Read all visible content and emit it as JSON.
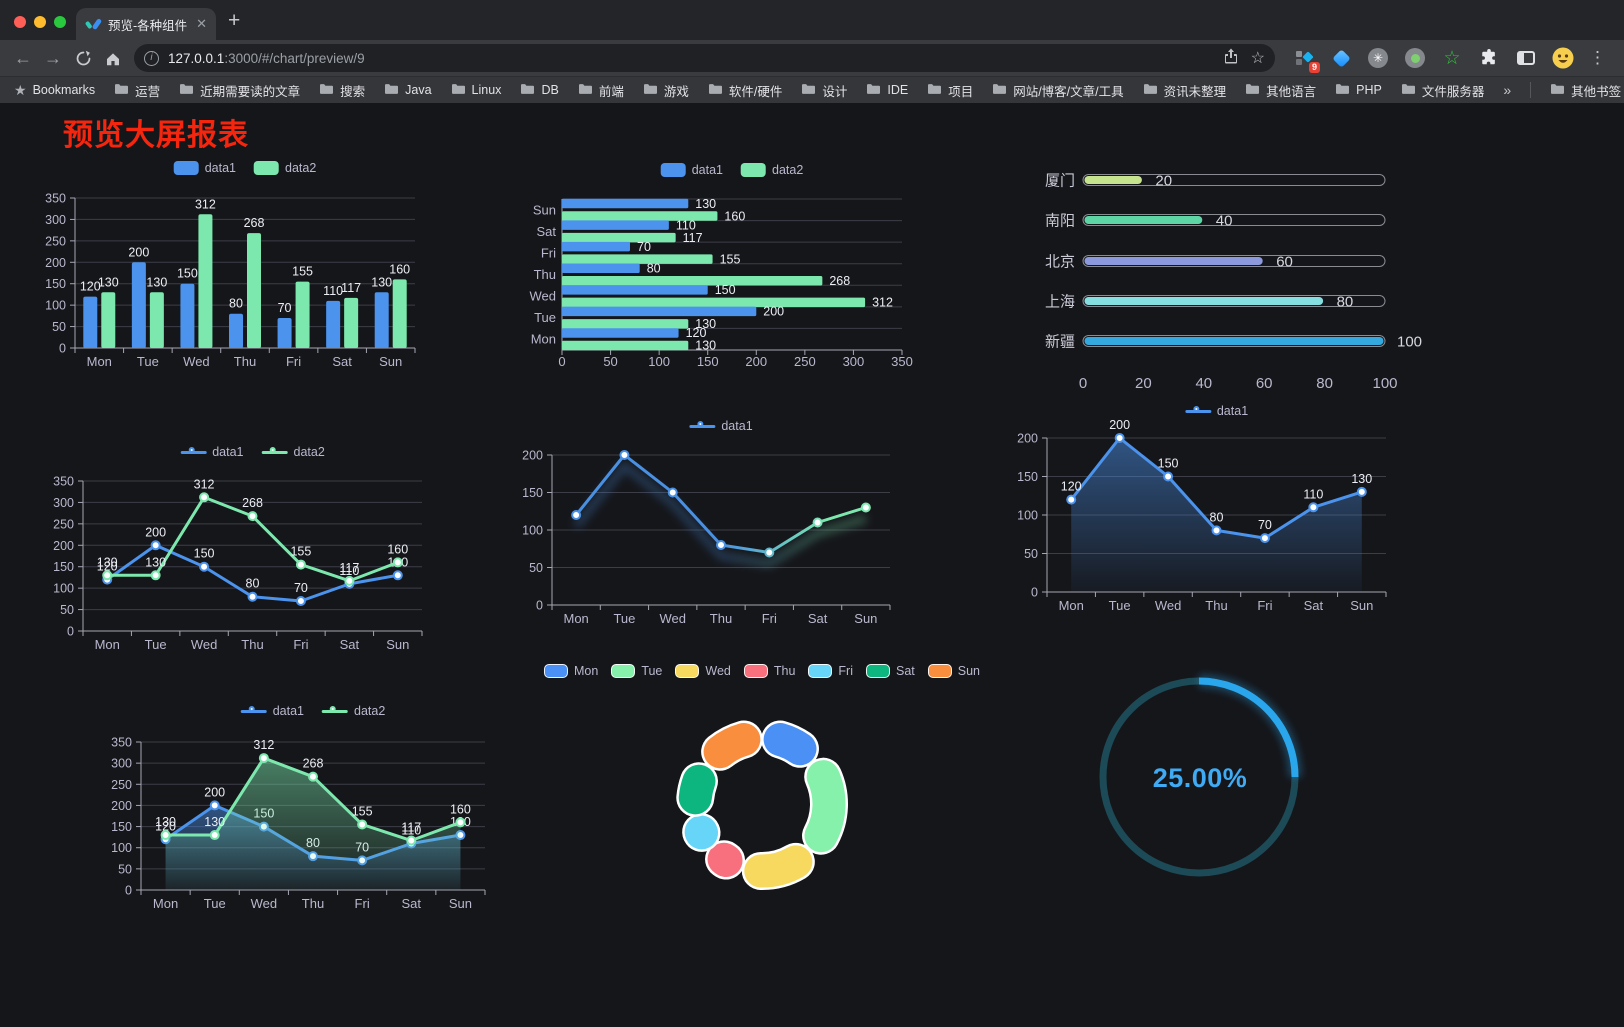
{
  "browser": {
    "tab_title": "预览-各种组件",
    "url": {
      "host": "127.0.0.1",
      "rest": ":3000/#/chart/preview/9"
    },
    "extension_badge": "9"
  },
  "bookmarks": {
    "root": "Bookmarks",
    "folders": [
      "运营",
      "近期需要读的文章",
      "搜索",
      "Java",
      "Linux",
      "DB",
      "前端",
      "游戏",
      "软件/硬件",
      "设计",
      "IDE",
      "项目",
      "网站/博客/文章/工具",
      "资讯未整理",
      "其他语言",
      "PHP",
      "文件服务器"
    ],
    "overflow_symbol": "»",
    "other": "其他书签"
  },
  "page": {
    "title": "预览大屏报表",
    "title_color": "#f5260d",
    "background": "#15161a"
  },
  "chart_data": [
    {
      "id": "c1",
      "type": "bar",
      "categories": [
        "Mon",
        "Tue",
        "Wed",
        "Thu",
        "Fri",
        "Sat",
        "Sun"
      ],
      "series": [
        {
          "name": "data1",
          "color": "#4b93ec",
          "values": [
            120,
            200,
            150,
            80,
            70,
            110,
            130
          ]
        },
        {
          "name": "data2",
          "color": "#7ce8ae",
          "values": [
            130,
            130,
            312,
            268,
            155,
            117,
            160
          ]
        }
      ],
      "ylim": [
        0,
        350
      ],
      "ytick": 50,
      "grid": true,
      "legend_position": "top"
    },
    {
      "id": "c2",
      "type": "bar-horizontal",
      "categories_bottom_to_top": [
        "Mon",
        "Tue",
        "Wed",
        "Thu",
        "Fri",
        "Sat",
        "Sun"
      ],
      "series": [
        {
          "name": "data1",
          "color": "#4b93ec",
          "values": [
            120,
            200,
            150,
            80,
            70,
            110,
            130
          ]
        },
        {
          "name": "data2",
          "color": "#7ce8ae",
          "values": [
            130,
            130,
            312,
            268,
            155,
            117,
            160
          ]
        }
      ],
      "xlim": [
        0,
        350
      ],
      "xtick": 50,
      "legend_position": "top"
    },
    {
      "id": "c3",
      "type": "bar-progress",
      "categories": [
        "厦门",
        "南阳",
        "北京",
        "上海",
        "新疆"
      ],
      "values": [
        20,
        40,
        60,
        80,
        100
      ],
      "colors": [
        "#c6e48e",
        "#5dd5a5",
        "#8d99dd",
        "#85dfe1",
        "#33a9df"
      ],
      "xlim": [
        0,
        100
      ],
      "xticks": [
        0,
        20,
        40,
        60,
        80,
        100
      ]
    },
    {
      "id": "c4",
      "type": "line",
      "categories": [
        "Mon",
        "Tue",
        "Wed",
        "Thu",
        "Fri",
        "Sat",
        "Sun"
      ],
      "series": [
        {
          "name": "data1",
          "color": "#4b93ec",
          "values": [
            120,
            200,
            150,
            80,
            70,
            110,
            130
          ],
          "labels": true,
          "markers": true
        },
        {
          "name": "data2",
          "color": "#7ce8ae",
          "values": [
            130,
            130,
            312,
            268,
            155,
            117,
            160
          ],
          "labels": true,
          "markers": true
        }
      ],
      "ylim": [
        0,
        350
      ],
      "ytick": 50,
      "legend_position": "top"
    },
    {
      "id": "c5",
      "type": "line",
      "categories": [
        "Mon",
        "Tue",
        "Wed",
        "Thu",
        "Fri",
        "Sat",
        "Sun"
      ],
      "series": [
        {
          "name": "data1",
          "color": "#4b93ec",
          "gradient": [
            "#4a90e2",
            "#7ce8ae"
          ],
          "values": [
            120,
            200,
            150,
            80,
            70,
            110,
            130
          ],
          "labels": false,
          "markers": true,
          "shadow": true
        }
      ],
      "ylim": [
        0,
        200
      ],
      "ytick": 50,
      "legend_position": "top"
    },
    {
      "id": "c6",
      "type": "area",
      "categories": [
        "Mon",
        "Tue",
        "Wed",
        "Thu",
        "Fri",
        "Sat",
        "Sun"
      ],
      "series": [
        {
          "name": "data1",
          "color": "#4b93ec",
          "values": [
            120,
            200,
            150,
            80,
            70,
            110,
            130
          ],
          "labels": true,
          "markers": true,
          "area": true
        }
      ],
      "ylim": [
        0,
        200
      ],
      "ytick": 50,
      "legend_position": "top"
    },
    {
      "id": "c7",
      "type": "area",
      "categories": [
        "Mon",
        "Tue",
        "Wed",
        "Thu",
        "Fri",
        "Sat",
        "Sun"
      ],
      "series": [
        {
          "name": "data1",
          "color": "#4b93ec",
          "values": [
            120,
            200,
            150,
            80,
            70,
            110,
            130
          ],
          "labels": true,
          "markers": true,
          "area": true
        },
        {
          "name": "data2",
          "color": "#7ce8ae",
          "values": [
            130,
            130,
            312,
            268,
            155,
            117,
            160
          ],
          "labels": true,
          "markers": true,
          "area": true
        }
      ],
      "ylim": [
        0,
        350
      ],
      "ytick": 50,
      "legend_position": "top"
    },
    {
      "id": "c8",
      "type": "pie",
      "items": [
        {
          "label": "Mon",
          "value": 120,
          "color": "#4a90f5"
        },
        {
          "label": "Tue",
          "value": 200,
          "color": "#85f1ab"
        },
        {
          "label": "Wed",
          "value": 150,
          "color": "#f7d95f"
        },
        {
          "label": "Thu",
          "value": 80,
          "color": "#f8707e"
        },
        {
          "label": "Fri",
          "value": 70,
          "color": "#66d5f7"
        },
        {
          "label": "Sat",
          "value": 110,
          "color": "#0db67e"
        },
        {
          "label": "Sun",
          "value": 130,
          "color": "#f98e3f"
        }
      ],
      "donut": true,
      "border_color": "#ffffff",
      "legend_position": "top"
    },
    {
      "id": "c9",
      "type": "gauge",
      "value": 25,
      "label": "25.00%",
      "progress_color": "#2aa6ec",
      "track_color": "#1d4a57",
      "text_color": "#3fabf5"
    }
  ]
}
